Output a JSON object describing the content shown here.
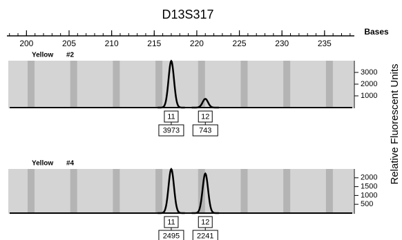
{
  "chart_data": {
    "type": "electropherogram",
    "title": "D13S317",
    "xlabel": "Bases",
    "ylabel": "Relative Fluorescent Units",
    "xlim": [
      197.7,
      238.5
    ],
    "xticks": [
      200,
      205,
      210,
      215,
      220,
      225,
      230,
      235
    ],
    "panels": [
      {
        "name": "Yellow",
        "sample": "#2",
        "categories": [
          "11",
          "12"
        ],
        "x": [
          217.0,
          221.0
        ],
        "values": [
          3973,
          743
        ],
        "color": "#000000",
        "ylim": [
          0,
          4000
        ],
        "yticks": [
          1000,
          2000,
          3000
        ]
      },
      {
        "name": "Yellow",
        "sample": "#4",
        "categories": [
          "11",
          "12"
        ],
        "x": [
          217.0,
          221.0
        ],
        "values": [
          2495,
          2241
        ],
        "color": "#000000",
        "ylim": [
          0,
          2500
        ],
        "yticks": [
          500,
          1000,
          1500,
          2000
        ]
      }
    ]
  }
}
